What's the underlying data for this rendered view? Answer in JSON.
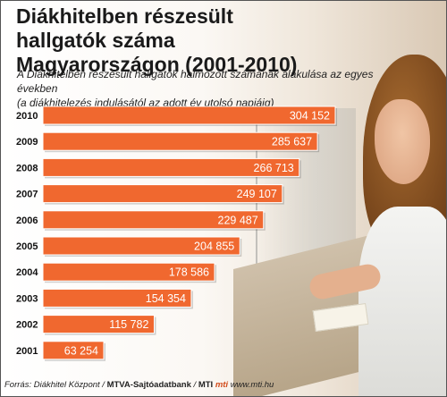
{
  "title_line1": "Diákhitelben részesült hallgatók száma",
  "title_line2": "Magyarországon (2001-2010)",
  "subtitle_line1": "A Diákhitelben részesült hallgatók halmozott számának alakulása az egyes években",
  "subtitle_line2": "(a diákhitelezés indulásától az adott év utolsó napjáig)",
  "source": {
    "prefix": "Forrás: Diákhitel Központ / ",
    "agency": "MTVA-Sajtóadatbank",
    "sep1": " / ",
    "mti": "MTI",
    "sep2": "  ",
    "logo": "mti",
    "url": "  www.mti.hu"
  },
  "colors": {
    "bar": "#f0682f",
    "label": "#ffffff"
  },
  "chart_data": {
    "type": "bar",
    "orientation": "horizontal",
    "categories": [
      "2010",
      "2009",
      "2008",
      "2007",
      "2006",
      "2005",
      "2004",
      "2003",
      "2002",
      "2001"
    ],
    "values": [
      304152,
      285637,
      266713,
      249107,
      229487,
      204855,
      178586,
      154354,
      115782,
      63254
    ],
    "value_labels": [
      "304 152",
      "285 637",
      "266 713",
      "249 107",
      "229 487",
      "204 855",
      "178 586",
      "154 354",
      "115 782",
      "63 254"
    ],
    "title": "Diákhitelben részesült hallgatók száma Magyarországon (2001-2010)",
    "xlabel": "",
    "ylabel": "",
    "xlim": [
      0,
      304152
    ],
    "grid": false,
    "legend": "none"
  }
}
